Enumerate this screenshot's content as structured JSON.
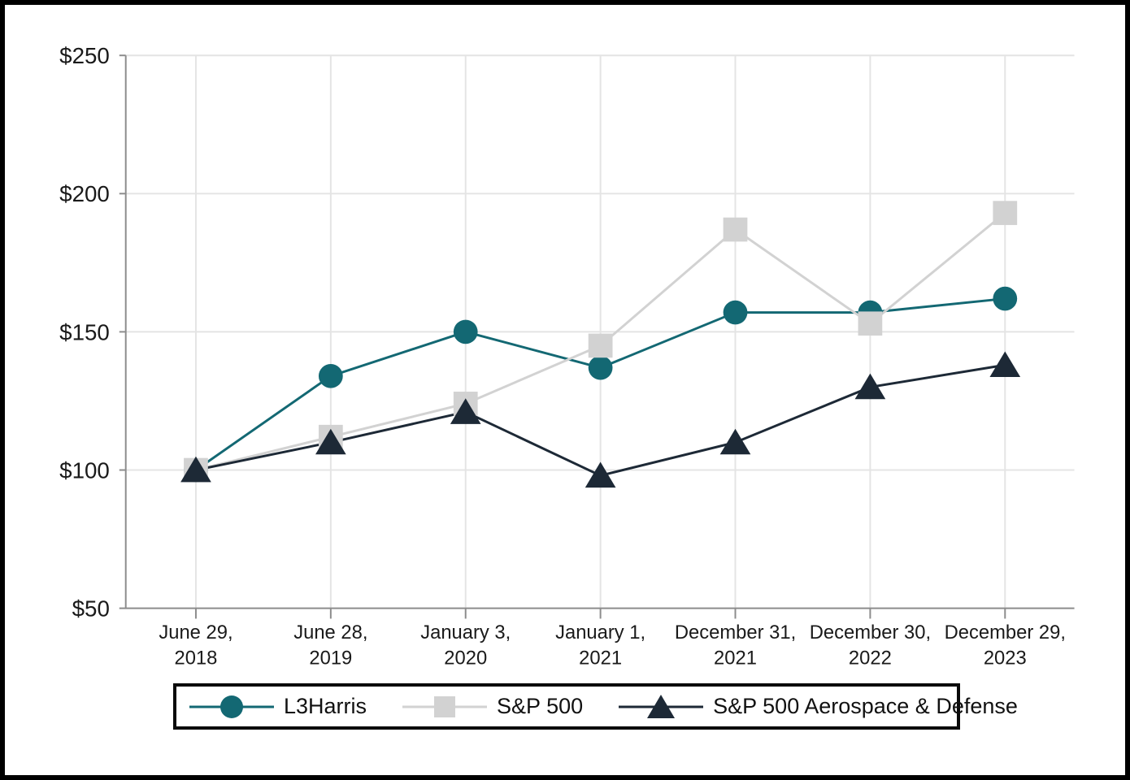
{
  "chart_data": {
    "type": "line",
    "title": "",
    "categories": [
      "June 29, 2018",
      "June 28, 2019",
      "January 3, 2020",
      "January 1, 2021",
      "December 31, 2021",
      "December 30, 2022",
      "December 29, 2023"
    ],
    "category_label_lines": [
      [
        "June 29,",
        "2018"
      ],
      [
        "June 28,",
        "2019"
      ],
      [
        "January 3,",
        "2020"
      ],
      [
        "January 1,",
        "2021"
      ],
      [
        "December 31,",
        "2021"
      ],
      [
        "December 30,",
        "2022"
      ],
      [
        "December 29,",
        "2023"
      ]
    ],
    "series": [
      {
        "name": "L3Harris",
        "marker": "circle",
        "color": "#136873",
        "values": [
          100,
          134,
          150,
          137,
          157,
          157,
          162
        ]
      },
      {
        "name": "S&P 500",
        "marker": "square",
        "color": "#d2d2d2",
        "values": [
          100,
          112,
          124,
          145,
          187,
          153,
          193
        ]
      },
      {
        "name": "S&P 500 Aerospace & Defense",
        "marker": "triangle",
        "color": "#1d2936",
        "values": [
          100,
          110,
          121,
          98,
          110,
          130,
          138
        ]
      }
    ],
    "xlabel": "",
    "ylabel": "",
    "ylim": [
      50,
      250
    ],
    "ytick_step": 50,
    "ytick_labels": [
      "$50",
      "$100",
      "$150",
      "$200",
      "$250"
    ],
    "grid": true,
    "legend_position": "bottom",
    "colors": {
      "grid": "#e4e4e4",
      "axis": "#8c8c8c",
      "text": "#1a1a1a",
      "legend_border": "#0a0a0a",
      "background": "#ffffff",
      "frame": "#000000"
    }
  }
}
